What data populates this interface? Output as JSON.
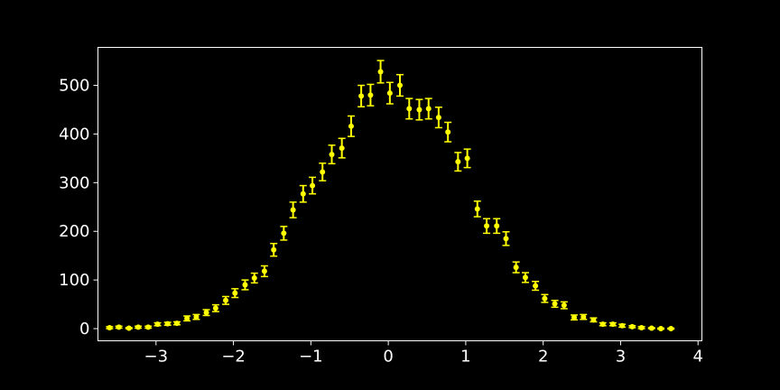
{
  "chart_data": {
    "type": "scatter",
    "title": "",
    "xlabel": "",
    "ylabel": "",
    "xlim": [
      -3.75,
      4.05
    ],
    "ylim": [
      -25,
      578
    ],
    "x_ticks": [
      -3,
      -2,
      -1,
      0,
      1,
      2,
      3,
      4
    ],
    "x_tick_labels": [
      "−3",
      "−2",
      "−1",
      "0",
      "1",
      "2",
      "3",
      "4"
    ],
    "y_ticks": [
      0,
      100,
      200,
      300,
      400,
      500
    ],
    "y_tick_labels": [
      "0",
      "100",
      "200",
      "300",
      "400",
      "500"
    ],
    "grid": false,
    "background_color": "#000000",
    "axis_color": "#ffffff",
    "marker_color": "#ffff00",
    "series": [
      {
        "style": "errorbar",
        "x": [
          -3.6,
          -3.48,
          -3.35,
          -3.23,
          -3.1,
          -2.98,
          -2.85,
          -2.73,
          -2.6,
          -2.48,
          -2.35,
          -2.23,
          -2.1,
          -1.98,
          -1.85,
          -1.73,
          -1.6,
          -1.48,
          -1.35,
          -1.23,
          -1.1,
          -0.98,
          -0.85,
          -0.73,
          -0.6,
          -0.48,
          -0.35,
          -0.23,
          -0.1,
          0.02,
          0.15,
          0.27,
          0.4,
          0.52,
          0.65,
          0.77,
          0.9,
          1.02,
          1.15,
          1.27,
          1.4,
          1.52,
          1.65,
          1.77,
          1.9,
          2.02,
          2.15,
          2.27,
          2.4,
          2.52,
          2.65,
          2.77,
          2.9,
          3.02,
          3.15,
          3.27,
          3.4,
          3.52,
          3.65
        ],
        "y": [
          2,
          3,
          1,
          3,
          3,
          9,
          10,
          11,
          21,
          24,
          33,
          42,
          58,
          73,
          90,
          104,
          118,
          162,
          196,
          244,
          277,
          294,
          322,
          358,
          371,
          416,
          478,
          480,
          528,
          484,
          500,
          452,
          450,
          452,
          434,
          404,
          343,
          350,
          246,
          211,
          211,
          185,
          126,
          105,
          88,
          62,
          51,
          48,
          23,
          24,
          18,
          9,
          9,
          6,
          4,
          2,
          1,
          0,
          0
        ],
        "yerr": [
          2,
          2,
          1,
          2,
          2,
          3,
          3,
          3,
          5,
          5,
          6,
          7,
          8,
          9,
          10,
          10,
          11,
          13,
          14,
          16,
          17,
          17,
          18,
          19,
          20,
          21,
          22,
          22,
          23,
          22,
          22,
          21,
          21,
          21,
          21,
          20,
          19,
          19,
          16,
          15,
          15,
          14,
          11,
          10,
          9,
          8,
          7,
          7,
          5,
          5,
          4,
          3,
          3,
          3,
          2,
          2,
          1,
          1,
          1
        ]
      }
    ]
  }
}
